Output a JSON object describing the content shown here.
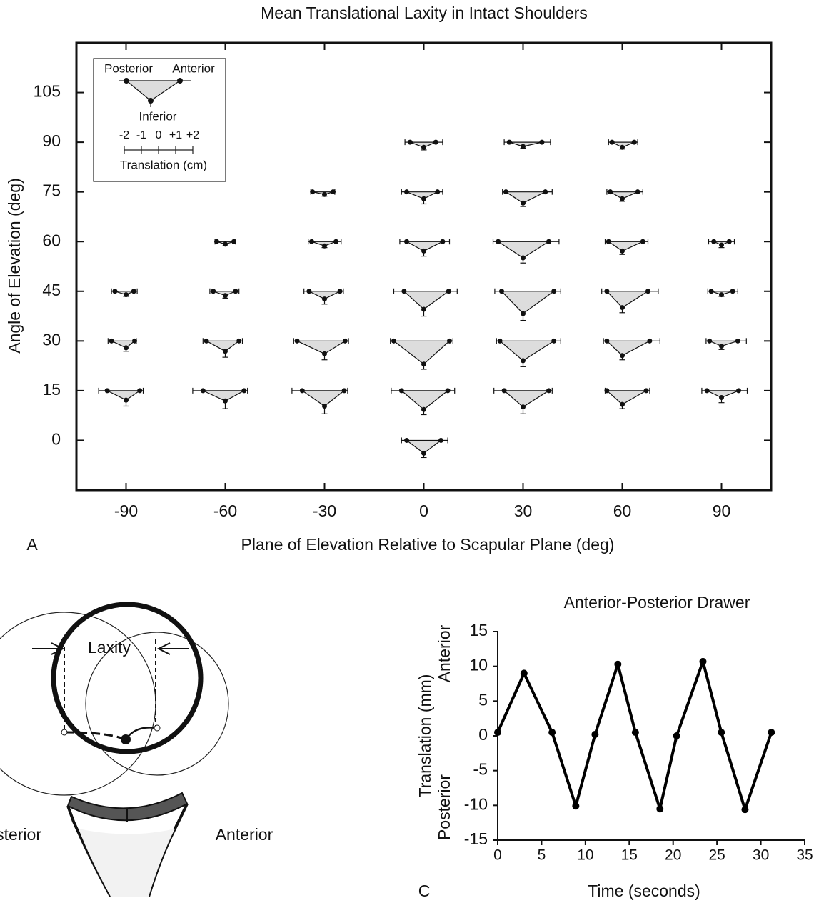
{
  "chart_data": [
    {
      "type": "glyph",
      "title": "Mean Translational Laxity in Intact Shoulders",
      "xlabel": "Plane of Elevation Relative to Scapular Plane (deg)",
      "ylabel": "Angle of Elevation (deg)",
      "panel_label": "A",
      "xlim": [
        -105,
        105
      ],
      "xticks": [
        -90,
        -60,
        -30,
        0,
        30,
        60,
        90
      ],
      "ylim": [
        -15,
        120
      ],
      "yticks": [
        0,
        15,
        30,
        45,
        60,
        75,
        90,
        105
      ],
      "legend": {
        "posterior_label": "Posterior",
        "anterior_label": "Anterior",
        "inferior_label": "Inferior",
        "scale_label": "Translation (cm)",
        "scale_ticks": [
          -2,
          -1,
          0,
          {
            "value": 1,
            "label": "+1"
          },
          {
            "value": 2,
            "label": "+2"
          }
        ]
      },
      "glyphs": [
        {
          "x": 0,
          "y": 90,
          "posterior": -0.8,
          "anterior": 0.7,
          "inferior": 0.3,
          "err": [
            0.3,
            0.4,
            0.15
          ]
        },
        {
          "x": 30,
          "y": 90,
          "posterior": -0.8,
          "anterior": 1.1,
          "inferior": 0.25,
          "err": [
            0.3,
            0.5,
            0.1
          ]
        },
        {
          "x": 60,
          "y": 90,
          "posterior": -0.6,
          "anterior": 0.7,
          "inferior": 0.3,
          "err": [
            0.2,
            0.2,
            0.1
          ]
        },
        {
          "x": -30,
          "y": 75,
          "posterior": -0.7,
          "anterior": 0.5,
          "inferior": 0.15,
          "err": [
            0.1,
            0.1,
            0.1
          ]
        },
        {
          "x": 0,
          "y": 75,
          "posterior": -1.0,
          "anterior": 0.8,
          "inferior": 0.4,
          "err": [
            0.3,
            0.3,
            0.3
          ]
        },
        {
          "x": 30,
          "y": 75,
          "posterior": -1.0,
          "anterior": 1.3,
          "inferior": 0.65,
          "err": [
            0.2,
            0.4,
            0.2
          ]
        },
        {
          "x": 60,
          "y": 75,
          "posterior": -0.7,
          "anterior": 0.9,
          "inferior": 0.4,
          "err": [
            0.2,
            0.3,
            0.15
          ]
        },
        {
          "x": -60,
          "y": 60,
          "posterior": -0.5,
          "anterior": 0.5,
          "inferior": 0.15,
          "err": [
            0.1,
            0.1,
            0.1
          ]
        },
        {
          "x": -30,
          "y": 60,
          "posterior": -0.75,
          "anterior": 0.67,
          "inferior": 0.25,
          "err": [
            0.2,
            0.3,
            0.1
          ]
        },
        {
          "x": 0,
          "y": 60,
          "posterior": -1.0,
          "anterior": 1.1,
          "inferior": 0.55,
          "err": [
            0.4,
            0.4,
            0.3
          ]
        },
        {
          "x": 30,
          "y": 60,
          "posterior": -1.45,
          "anterior": 1.5,
          "inferior": 0.95,
          "err": [
            0.3,
            0.6,
            0.3
          ]
        },
        {
          "x": 60,
          "y": 60,
          "posterior": -0.8,
          "anterior": 1.2,
          "inferior": 0.55,
          "err": [
            0.2,
            0.3,
            0.2
          ]
        },
        {
          "x": 90,
          "y": 60,
          "posterior": -0.45,
          "anterior": 0.45,
          "inferior": 0.2,
          "err": [
            0.3,
            0.3,
            0.15
          ]
        },
        {
          "x": -90,
          "y": 45,
          "posterior": -0.65,
          "anterior": 0.45,
          "inferior": 0.2,
          "err": [
            0.2,
            0.2,
            0.1
          ]
        },
        {
          "x": -60,
          "y": 45,
          "posterior": -0.7,
          "anterior": 0.6,
          "inferior": 0.25,
          "err": [
            0.2,
            0.2,
            0.15
          ]
        },
        {
          "x": -30,
          "y": 45,
          "posterior": -0.9,
          "anterior": 0.9,
          "inferior": 0.45,
          "err": [
            0.3,
            0.2,
            0.3
          ]
        },
        {
          "x": 0,
          "y": 45,
          "posterior": -1.15,
          "anterior": 1.45,
          "inferior": 1.05,
          "err": [
            0.6,
            0.5,
            0.4
          ]
        },
        {
          "x": 30,
          "y": 45,
          "posterior": -1.25,
          "anterior": 1.8,
          "inferior": 1.3,
          "err": [
            0.4,
            0.4,
            0.4
          ]
        },
        {
          "x": 60,
          "y": 45,
          "posterior": -0.9,
          "anterior": 1.5,
          "inferior": 0.95,
          "err": [
            0.3,
            0.6,
            0.3
          ]
        },
        {
          "x": 90,
          "y": 45,
          "posterior": -0.6,
          "anterior": 0.65,
          "inferior": 0.2,
          "err": [
            0.2,
            0.3,
            0.1
          ]
        },
        {
          "x": -90,
          "y": 30,
          "posterior": -0.85,
          "anterior": 0.5,
          "inferior": 0.4,
          "err": [
            0.2,
            0.1,
            0.2
          ]
        },
        {
          "x": -60,
          "y": 30,
          "posterior": -1.1,
          "anterior": 0.8,
          "inferior": 0.6,
          "err": [
            0.2,
            0.2,
            0.35
          ]
        },
        {
          "x": -30,
          "y": 30,
          "posterior": -1.6,
          "anterior": 1.2,
          "inferior": 0.75,
          "err": [
            0.2,
            0.2,
            0.35
          ]
        },
        {
          "x": 0,
          "y": 30,
          "posterior": -1.75,
          "anterior": 1.5,
          "inferior": 1.35,
          "err": [
            0.2,
            0.2,
            0.3
          ]
        },
        {
          "x": 30,
          "y": 30,
          "posterior": -1.35,
          "anterior": 1.8,
          "inferior": 1.15,
          "err": [
            0.2,
            0.4,
            0.35
          ]
        },
        {
          "x": 60,
          "y": 30,
          "posterior": -0.9,
          "anterior": 1.6,
          "inferior": 0.85,
          "err": [
            0.2,
            0.6,
            0.25
          ]
        },
        {
          "x": 90,
          "y": 30,
          "posterior": -0.7,
          "anterior": 0.95,
          "inferior": 0.3,
          "err": [
            0.2,
            0.5,
            0.2
          ]
        },
        {
          "x": -90,
          "y": 15,
          "posterior": -1.1,
          "anterior": 0.8,
          "inferior": 0.55,
          "err": [
            0.5,
            0.2,
            0.35
          ]
        },
        {
          "x": -60,
          "y": 15,
          "posterior": -1.3,
          "anterior": 1.1,
          "inferior": 0.6,
          "err": [
            0.6,
            0.2,
            0.45
          ]
        },
        {
          "x": -30,
          "y": 15,
          "posterior": -1.3,
          "anterior": 1.15,
          "inferior": 0.9,
          "err": [
            0.6,
            0.2,
            0.45
          ]
        },
        {
          "x": 0,
          "y": 15,
          "posterior": -1.3,
          "anterior": 1.4,
          "inferior": 1.1,
          "err": [
            0.6,
            0.4,
            0.3
          ]
        },
        {
          "x": 30,
          "y": 15,
          "posterior": -1.1,
          "anterior": 1.5,
          "inferior": 0.95,
          "err": [
            0.6,
            0.2,
            0.4
          ]
        },
        {
          "x": 60,
          "y": 15,
          "posterior": -0.9,
          "anterior": 1.4,
          "inferior": 0.8,
          "err": [
            0.1,
            0.2,
            0.25
          ]
        },
        {
          "x": 90,
          "y": 15,
          "posterior": -0.85,
          "anterior": 1.0,
          "inferior": 0.4,
          "err": [
            0.3,
            0.5,
            0.3
          ]
        },
        {
          "x": 0,
          "y": 0,
          "posterior": -1.0,
          "anterior": 1.0,
          "inferior": 0.75,
          "err": [
            0.3,
            0.4,
            0.25
          ]
        }
      ]
    },
    {
      "type": "line",
      "title": "Anterior-Posterior Drawer",
      "xlabel": "Time (seconds)",
      "ylabel": "Translation (mm)",
      "panel_label": "C",
      "upper_label": "Anterior",
      "lower_label": "Posterior",
      "xlim": [
        0,
        35
      ],
      "xticks": [
        0,
        5,
        10,
        15,
        20,
        25,
        30,
        35
      ],
      "ylim": [
        -15,
        15
      ],
      "yticks": [
        -15,
        -10,
        -5,
        0,
        5,
        10,
        15
      ],
      "x": [
        0,
        3.0,
        6.2,
        8.9,
        11.1,
        13.7,
        15.7,
        18.5,
        20.4,
        23.4,
        25.5,
        28.2,
        31.2
      ],
      "series": [
        {
          "color": "#000000",
          "values": [
            0.5,
            9.0,
            0.5,
            -10.1,
            0.2,
            10.3,
            0.5,
            -10.5,
            0,
            10.7,
            0.5,
            -10.6,
            0.5
          ]
        }
      ]
    }
  ],
  "diagram": {
    "laxity_label": "Laxity",
    "left_label": "Posterior",
    "right_label": "Anterior"
  }
}
